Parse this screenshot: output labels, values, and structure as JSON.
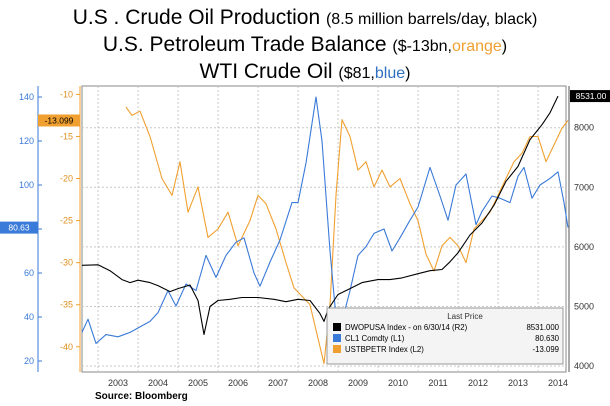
{
  "titles": {
    "line1_main": "U.S . Crude Oil Production",
    "line1_sub": "(8.5 million  barrels/day, black)",
    "line2_main": "U.S. Petroleum Trade Balance",
    "line2_sub_a": "($-13bn,",
    "line2_sub_b": "orange",
    "line2_sub_c": ")",
    "line3_main": "WTI Crude Oil",
    "line3_sub_a": "($81,",
    "line3_sub_b": "blue",
    "line3_sub_c": ")"
  },
  "source": "Source:  Bloomberg",
  "legend": {
    "header": "Last Price",
    "rows": [
      {
        "label": "DWOPUSA Index - on 6/30/14  (R2)",
        "value": "8531.000",
        "color": "#000000"
      },
      {
        "label": "CL1 Comdty  (L1)",
        "value": "80.630",
        "color": "#3a7ad8"
      },
      {
        "label": "USTBPETR Index  (L2)",
        "value": "-13.099",
        "color": "#f0a030"
      }
    ]
  },
  "colors": {
    "production": "#000000",
    "wti": "#3a7ad8",
    "trade": "#f0a030",
    "grid": "#c8c8c8"
  },
  "chart_data": {
    "type": "line",
    "x_axis": {
      "type": "time",
      "range": [
        2002.6,
        2014.7
      ],
      "tick_labels": [
        "2003",
        "2004",
        "2005",
        "2006",
        "2007",
        "2008",
        "2009",
        "2010",
        "2011",
        "2012",
        "2013",
        "2014"
      ]
    },
    "y_axis_left1": {
      "range": [
        15,
        145
      ],
      "ticks": [
        20,
        40,
        60,
        80,
        100,
        120,
        140
      ]
    },
    "y_axis_left2": {
      "range": [
        -43,
        -9
      ],
      "ticks": [
        -10,
        -15,
        -20,
        -25,
        -30,
        -35,
        -40
      ]
    },
    "y_axis_right": {
      "range": [
        3900,
        8700
      ],
      "ticks": [
        4000,
        5000,
        6000,
        7000,
        8000
      ]
    },
    "last_value_tags": [
      {
        "axis": "left1",
        "value": 80.63,
        "label": "80.63"
      },
      {
        "axis": "left2",
        "value": -13.099,
        "label": "-13.099"
      },
      {
        "axis": "right",
        "value": 8531,
        "label": "8531.00"
      }
    ],
    "grid": true,
    "legend_position": "bottom-right",
    "series": [
      {
        "name": "DWOPUSA Index - on 6/30/14  (R2)",
        "axis": "right",
        "points": [
          [
            2002.6,
            5690
          ],
          [
            2003.0,
            5700
          ],
          [
            2003.3,
            5600
          ],
          [
            2003.6,
            5450
          ],
          [
            2003.8,
            5400
          ],
          [
            2004.0,
            5440
          ],
          [
            2004.3,
            5400
          ],
          [
            2004.5,
            5350
          ],
          [
            2004.8,
            5250
          ],
          [
            2005.0,
            5300
          ],
          [
            2005.3,
            5360
          ],
          [
            2005.5,
            5100
          ],
          [
            2005.65,
            4530
          ],
          [
            2005.8,
            5000
          ],
          [
            2006.0,
            5100
          ],
          [
            2006.3,
            5120
          ],
          [
            2006.6,
            5150
          ],
          [
            2007.0,
            5150
          ],
          [
            2007.4,
            5120
          ],
          [
            2007.7,
            5080
          ],
          [
            2008.0,
            5120
          ],
          [
            2008.3,
            5100
          ],
          [
            2008.55,
            4880
          ],
          [
            2008.65,
            4750
          ],
          [
            2008.75,
            4950
          ],
          [
            2009.0,
            5200
          ],
          [
            2009.3,
            5300
          ],
          [
            2009.6,
            5400
          ],
          [
            2010.0,
            5450
          ],
          [
            2010.3,
            5450
          ],
          [
            2010.6,
            5480
          ],
          [
            2011.0,
            5550
          ],
          [
            2011.3,
            5600
          ],
          [
            2011.6,
            5620
          ],
          [
            2011.8,
            5750
          ],
          [
            2012.0,
            5900
          ],
          [
            2012.3,
            6200
          ],
          [
            2012.6,
            6400
          ],
          [
            2012.9,
            6700
          ],
          [
            2013.2,
            7100
          ],
          [
            2013.5,
            7350
          ],
          [
            2013.8,
            7800
          ],
          [
            2014.1,
            8050
          ],
          [
            2014.3,
            8250
          ],
          [
            2014.5,
            8531
          ]
        ]
      },
      {
        "name": "CL1 Comdty  (L1)",
        "axis": "left1",
        "points": [
          [
            2002.6,
            33
          ],
          [
            2002.75,
            39
          ],
          [
            2002.95,
            28
          ],
          [
            2003.2,
            32
          ],
          [
            2003.5,
            31
          ],
          [
            2003.8,
            33
          ],
          [
            2004.0,
            35
          ],
          [
            2004.3,
            38
          ],
          [
            2004.5,
            42
          ],
          [
            2004.75,
            52
          ],
          [
            2004.95,
            45
          ],
          [
            2005.2,
            55
          ],
          [
            2005.45,
            52
          ],
          [
            2005.7,
            68
          ],
          [
            2005.95,
            58
          ],
          [
            2006.2,
            68
          ],
          [
            2006.45,
            74
          ],
          [
            2006.65,
            76
          ],
          [
            2006.9,
            60
          ],
          [
            2007.05,
            54
          ],
          [
            2007.3,
            65
          ],
          [
            2007.55,
            75
          ],
          [
            2007.85,
            92
          ],
          [
            2008.0,
            92
          ],
          [
            2008.2,
            110
          ],
          [
            2008.45,
            140
          ],
          [
            2008.6,
            120
          ],
          [
            2008.8,
            70
          ],
          [
            2008.95,
            40
          ],
          [
            2009.1,
            38
          ],
          [
            2009.3,
            52
          ],
          [
            2009.5,
            68
          ],
          [
            2009.7,
            72
          ],
          [
            2009.9,
            78
          ],
          [
            2010.15,
            80
          ],
          [
            2010.35,
            70
          ],
          [
            2010.55,
            76
          ],
          [
            2010.8,
            84
          ],
          [
            2011.0,
            90
          ],
          [
            2011.3,
            108
          ],
          [
            2011.55,
            95
          ],
          [
            2011.75,
            84
          ],
          [
            2011.95,
            100
          ],
          [
            2012.2,
            105
          ],
          [
            2012.45,
            82
          ],
          [
            2012.6,
            88
          ],
          [
            2012.85,
            95
          ],
          [
            2013.05,
            94
          ],
          [
            2013.3,
            92
          ],
          [
            2013.5,
            104
          ],
          [
            2013.65,
            108
          ],
          [
            2013.85,
            94
          ],
          [
            2014.05,
            100
          ],
          [
            2014.3,
            103
          ],
          [
            2014.5,
            106
          ],
          [
            2014.65,
            92
          ],
          [
            2014.75,
            80.63
          ]
        ]
      },
      {
        "name": "USTBPETR Index  (L2)",
        "axis": "left2",
        "points": [
          [
            2003.7,
            -11.5
          ],
          [
            2003.85,
            -12.5
          ],
          [
            2004.05,
            -12.0
          ],
          [
            2004.3,
            -15.0
          ],
          [
            2004.6,
            -20.0
          ],
          [
            2004.85,
            -22.0
          ],
          [
            2005.05,
            -18.0
          ],
          [
            2005.25,
            -24.0
          ],
          [
            2005.5,
            -21.0
          ],
          [
            2005.75,
            -27.0
          ],
          [
            2006.0,
            -26.0
          ],
          [
            2006.25,
            -24.0
          ],
          [
            2006.5,
            -28.0
          ],
          [
            2006.8,
            -25.0
          ],
          [
            2007.0,
            -22.0
          ],
          [
            2007.2,
            -23.0
          ],
          [
            2007.45,
            -26.0
          ],
          [
            2007.7,
            -30.0
          ],
          [
            2007.9,
            -33.0
          ],
          [
            2008.1,
            -34.0
          ],
          [
            2008.3,
            -35.0
          ],
          [
            2008.5,
            -39.0
          ],
          [
            2008.65,
            -42.0
          ],
          [
            2008.8,
            -35.0
          ],
          [
            2008.95,
            -22.0
          ],
          [
            2009.1,
            -13.0
          ],
          [
            2009.3,
            -15.0
          ],
          [
            2009.5,
            -19.0
          ],
          [
            2009.7,
            -18.0
          ],
          [
            2009.9,
            -21.0
          ],
          [
            2010.1,
            -19.0
          ],
          [
            2010.3,
            -21.0
          ],
          [
            2010.55,
            -20.0
          ],
          [
            2010.8,
            -23.0
          ],
          [
            2011.0,
            -25.0
          ],
          [
            2011.2,
            -29.0
          ],
          [
            2011.4,
            -31.0
          ],
          [
            2011.6,
            -28.0
          ],
          [
            2011.8,
            -27.0
          ],
          [
            2012.0,
            -28.0
          ],
          [
            2012.2,
            -30.0
          ],
          [
            2012.4,
            -26.0
          ],
          [
            2012.6,
            -25.0
          ],
          [
            2012.8,
            -24.0
          ],
          [
            2013.0,
            -22.0
          ],
          [
            2013.2,
            -20.0
          ],
          [
            2013.4,
            -18.0
          ],
          [
            2013.6,
            -17.0
          ],
          [
            2013.8,
            -15.0
          ],
          [
            2014.0,
            -15.0
          ],
          [
            2014.2,
            -18.0
          ],
          [
            2014.4,
            -16.0
          ],
          [
            2014.6,
            -14.0
          ],
          [
            2014.75,
            -13.099
          ]
        ]
      }
    ]
  }
}
